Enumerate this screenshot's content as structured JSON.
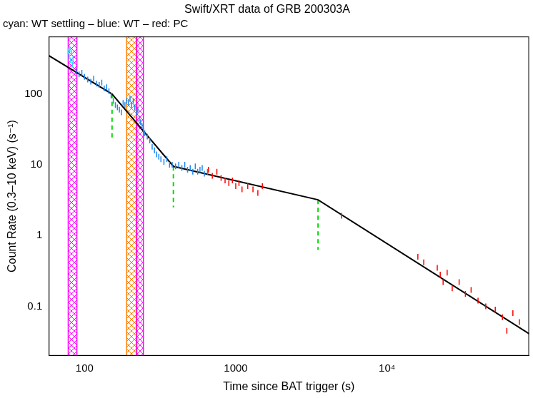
{
  "chart_data": {
    "type": "scatter",
    "title": "Swift/XRT data of GRB 200303A",
    "subtitle": "cyan: WT settling – blue: WT – red: PC",
    "x_label": "Time since BAT trigger (s)",
    "y_label": "Count Rate (0.3–10 keV) (s⁻¹)",
    "log": true,
    "grid": false,
    "xlim": [
      58,
      87000
    ],
    "ylim": [
      0.02,
      650
    ],
    "xticks": [
      100,
      1000,
      {
        "value": 10000,
        "label": "10⁴"
      }
    ],
    "yticks": [
      0.1,
      1,
      10,
      100
    ],
    "bands": [
      {
        "x": [
          78,
          89
        ],
        "color": "#ff00ff"
      },
      {
        "x": [
          190,
          222
        ],
        "color": "#ff8000"
      },
      {
        "x": [
          220,
          245
        ],
        "color": "#ff00ff"
      }
    ],
    "series": [
      {
        "name": "WT settling",
        "color": "#22ddff",
        "marker": "line",
        "x": [
          78,
          79,
          80,
          81,
          82,
          83,
          84
        ],
        "values": [
          400,
          350,
          430,
          300,
          380,
          260,
          320
        ]
      },
      {
        "name": "WT",
        "color": "#1e88f0",
        "marker": "line",
        "x": [
          88,
          92,
          96,
          100,
          105,
          110,
          115,
          120,
          125,
          130,
          135,
          140,
          145,
          150,
          155,
          160,
          165,
          170,
          175,
          180,
          185,
          190,
          195,
          200,
          205,
          210,
          215,
          220,
          225,
          230,
          235,
          240,
          245,
          250,
          260,
          270,
          280,
          290,
          300,
          310,
          320,
          335,
          350,
          365,
          380,
          400,
          420,
          440,
          460,
          480,
          500,
          520,
          540,
          560,
          580,
          600,
          620,
          650
        ],
        "values": [
          210,
          190,
          200,
          175,
          160,
          150,
          165,
          140,
          135,
          145,
          120,
          125,
          110,
          95,
          80,
          70,
          65,
          60,
          55,
          75,
          70,
          80,
          75,
          85,
          70,
          80,
          65,
          55,
          60,
          45,
          40,
          35,
          30,
          28,
          25,
          22,
          18,
          16,
          14,
          13,
          12,
          11,
          12,
          10,
          10,
          9.5,
          10,
          9,
          10,
          8.5,
          9,
          8,
          9.5,
          8,
          8.5,
          9,
          7.5,
          8
        ]
      },
      {
        "name": "PC",
        "color": "#ff0000",
        "marker": "line",
        "x": [
          660,
          700,
          750,
          800,
          850,
          900,
          950,
          1000,
          1050,
          1100,
          1200,
          1300,
          1400,
          1500,
          5000,
          16000,
          17500,
          21500,
          22500,
          23500,
          25000,
          27000,
          30000,
          33000,
          36000,
          40000,
          45000,
          52000,
          58000,
          62000,
          68000,
          75000
        ],
        "values": [
          8.5,
          7,
          8,
          6.5,
          6,
          5.5,
          6,
          5,
          5.5,
          4.5,
          5,
          4.5,
          4,
          5,
          1.9,
          0.5,
          0.42,
          0.35,
          0.28,
          0.22,
          0.3,
          0.18,
          0.22,
          0.15,
          0.17,
          0.12,
          0.1,
          0.09,
          0.07,
          0.045,
          0.08,
          0.06
        ]
      },
      {
        "type": "line",
        "color": "#000000",
        "line_style": "solid",
        "x": [
          58,
          152,
          387,
          3500,
          87000
        ],
        "values": [
          350,
          100,
          9.5,
          3.2,
          0.041
        ]
      },
      {
        "type": "line",
        "color": "#00dd00",
        "line_style": "dashed",
        "x": [
          152,
          152
        ],
        "values": [
          100,
          22
        ]
      },
      {
        "type": "line",
        "color": "#00dd00",
        "line_style": "dashed",
        "x": [
          387,
          387
        ],
        "values": [
          9.5,
          2.5
        ]
      },
      {
        "type": "line",
        "color": "#00dd00",
        "line_style": "dashed",
        "x": [
          3500,
          3500
        ],
        "values": [
          3.2,
          0.63
        ]
      }
    ]
  }
}
